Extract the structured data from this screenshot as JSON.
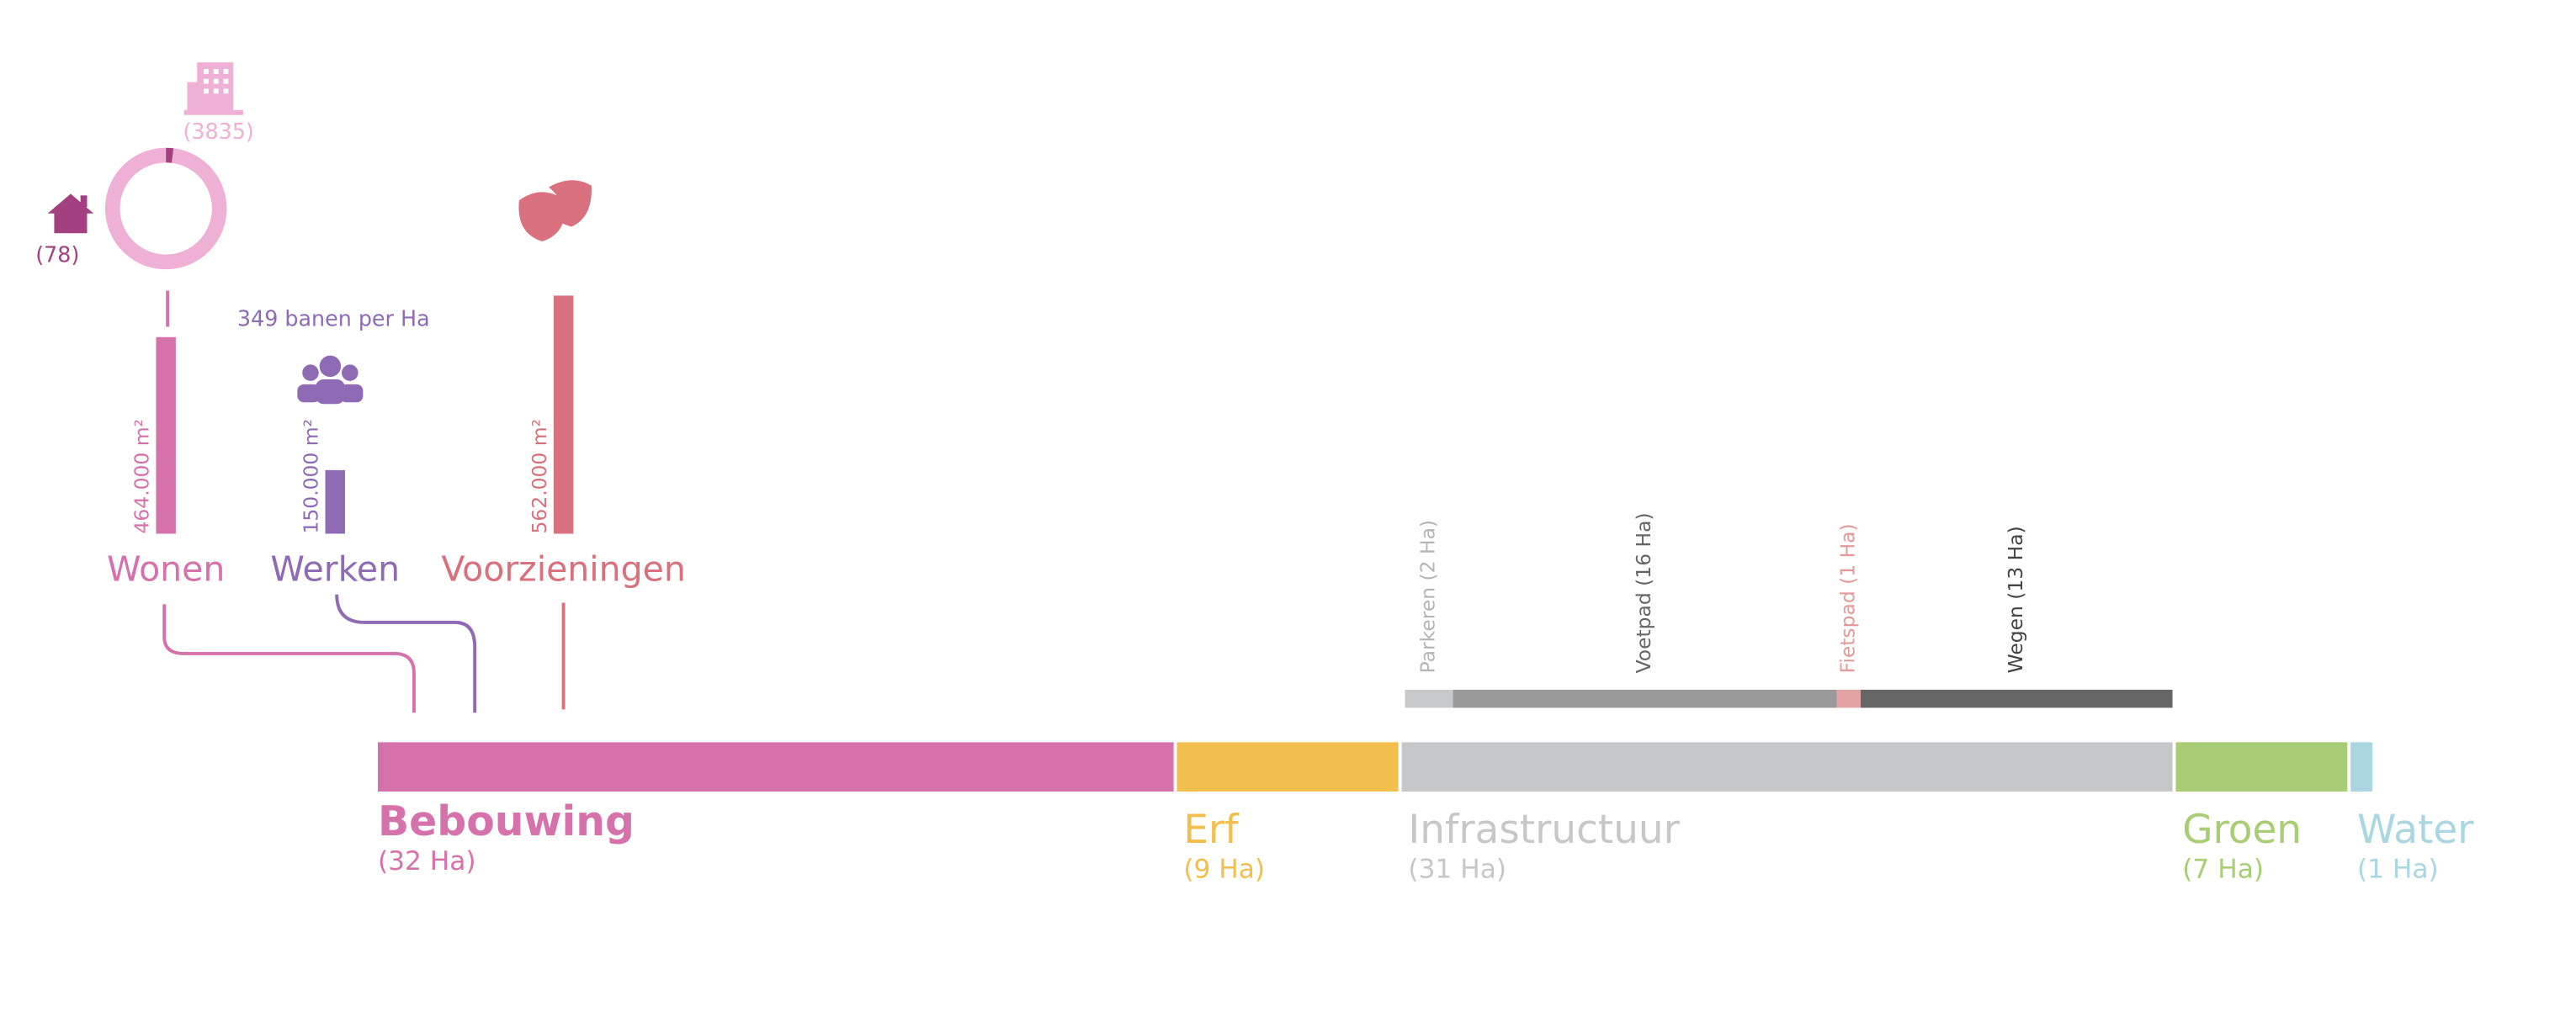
{
  "housing": {
    "homes": 78,
    "homes_label": "(78)",
    "buildings": 3835,
    "buildings_label": "(3835)",
    "homes_color": "#a3407f",
    "buildings_color": "#eeb0d4"
  },
  "jobs_density": "349 banen per Ha",
  "functions": {
    "categories": [
      "Wonen",
      "Werken",
      "Voorzieningen"
    ],
    "values": [
      464000,
      150000,
      562000
    ],
    "value_labels": [
      "464.000 m²",
      "150.000 m²",
      "562.000 m²"
    ],
    "colors": [
      "#d571ab",
      "#8f6bb5",
      "#d8707e"
    ]
  },
  "land_use": {
    "categories": [
      "Bebouwing",
      "Erf",
      "Infrastructuur",
      "Groen",
      "Water"
    ],
    "values": [
      32,
      9,
      31,
      7,
      1
    ],
    "value_labels": [
      "(32 Ha)",
      "(9 Ha)",
      "(31 Ha)",
      "(7 Ha)",
      "(1 Ha)"
    ],
    "colors": [
      "#d571ab",
      "#f2bf4f",
      "#c6c7c8",
      "#a9cd75",
      "#a9d6e0"
    ]
  },
  "infrastructure": {
    "categories": [
      "Parkeren (2 Ha)",
      "Voetpad (16 Ha)",
      "Fietspad (1 Ha)",
      "Wegen (13 Ha)"
    ],
    "values": [
      2,
      16,
      1,
      13
    ],
    "colors": [
      "#c8c9ca",
      "#9a9a9a",
      "#e3a3a3",
      "#666666"
    ],
    "label_colors": [
      "#b5b5b5",
      "#666666",
      "#e39a9a",
      "#444444"
    ]
  }
}
